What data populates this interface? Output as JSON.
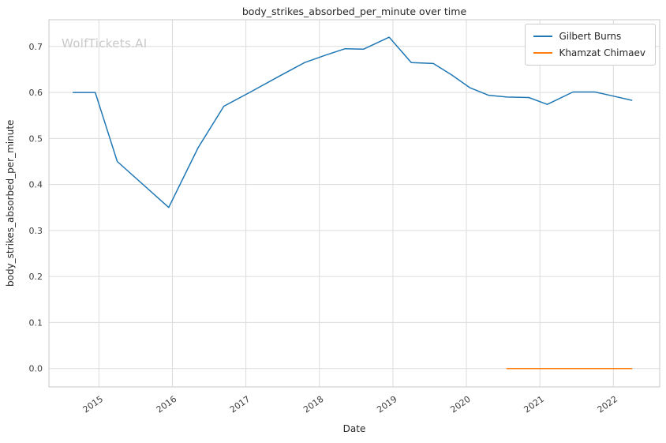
{
  "watermark": "WolfTickets.AI",
  "chart_data": {
    "type": "line",
    "title": "body_strikes_absorbed_per_minute over time",
    "xlabel": "Date",
    "ylabel": "body_strikes_absorbed_per_minute",
    "xlim": [
      2014.32,
      2022.63
    ],
    "ylim": [
      -0.04,
      0.758
    ],
    "xticks": [
      2015,
      2016,
      2017,
      2018,
      2019,
      2020,
      2021,
      2022
    ],
    "yticks": [
      0.0,
      0.1,
      0.2,
      0.3,
      0.4,
      0.5,
      0.6,
      0.7
    ],
    "grid": true,
    "legend_position": "upper right",
    "colors": {
      "grid": "#dcdcdc",
      "spine": "#c9c9c9",
      "tick_label": "#3d3d3d"
    },
    "series": [
      {
        "name": "Gilbert Burns",
        "color": "#1f77b4",
        "x": [
          2014.65,
          2014.95,
          2015.25,
          2015.95,
          2016.35,
          2016.7,
          2017.05,
          2017.45,
          2017.8,
          2018.1,
          2018.35,
          2018.6,
          2018.95,
          2019.25,
          2019.55,
          2019.8,
          2020.05,
          2020.3,
          2020.55,
          2020.85,
          2021.1,
          2021.45,
          2021.75,
          2022.0,
          2022.25
        ],
        "y": [
          0.6,
          0.6,
          0.45,
          0.35,
          0.48,
          0.57,
          0.6,
          0.635,
          0.665,
          0.682,
          0.695,
          0.694,
          0.72,
          0.665,
          0.663,
          0.638,
          0.61,
          0.594,
          0.59,
          0.589,
          0.574,
          0.601,
          0.601,
          0.592,
          0.583
        ]
      },
      {
        "name": "Khamzat Chimaev",
        "color": "#ff7f0e",
        "x": [
          2020.55,
          2021.1,
          2021.75,
          2022.25
        ],
        "y": [
          0.0,
          0.0,
          0.0,
          0.0
        ]
      }
    ]
  }
}
